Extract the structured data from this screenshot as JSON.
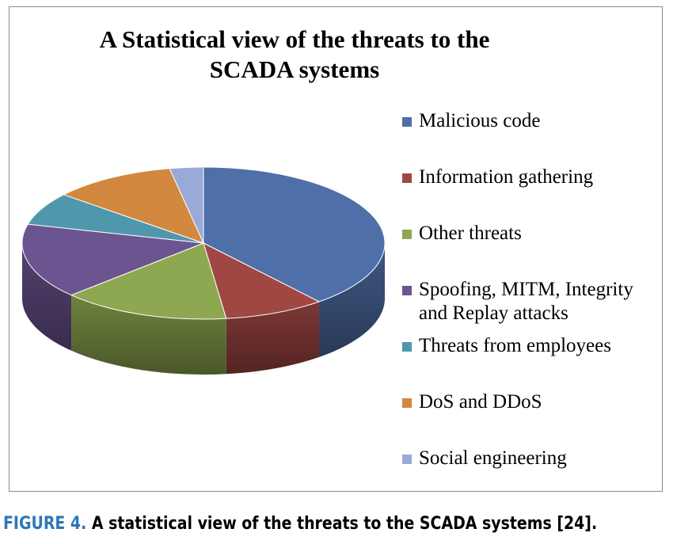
{
  "chart_data": {
    "type": "pie",
    "title_lines": [
      "A Statistical view of the threats to the",
      "SCADA systems"
    ],
    "legend_placement": "right",
    "style": "3d",
    "slices": [
      {
        "label": "Malicious code",
        "value": 39,
        "color": "#4f6fa8"
      },
      {
        "label": "Information gathering",
        "value": 9,
        "color": "#a04744"
      },
      {
        "label": "Other threats",
        "value": 15,
        "color": "#8ea851"
      },
      {
        "label": "Spoofing, MITM, Integrity and Replay attacks",
        "label_lines": [
          "Spoofing, MITM, Integrity",
          "and Replay attacks"
        ],
        "value": 16,
        "color": "#6b5590"
      },
      {
        "label": "Threats from employees",
        "value": 7,
        "color": "#4e97ad"
      },
      {
        "label": "DoS and DDoS",
        "value": 11,
        "color": "#d2883f"
      },
      {
        "label": "Social engineering",
        "value": 3,
        "color": "#9aaad6"
      }
    ]
  },
  "caption": {
    "label": "FIGURE 4.",
    "text": "A statistical view of the threats to the SCADA systems [24]."
  }
}
